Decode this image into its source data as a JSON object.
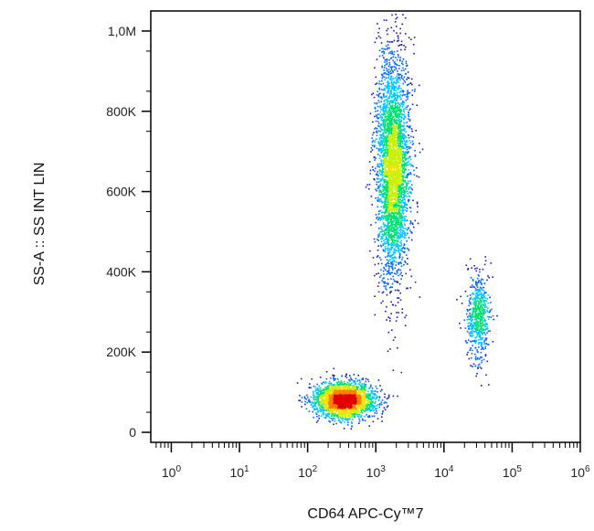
{
  "chart_data": {
    "type": "scatter",
    "subtype": "flow-cytometry density dot plot",
    "xlabel": "CD64 APC-Cy™7",
    "ylabel": "SS-A :: SS INT LIN",
    "x_scale": "log",
    "y_scale": "linear",
    "xlim": [
      0.5,
      1000000
    ],
    "ylim": [
      -25000,
      1050000
    ],
    "x_ticks": [
      {
        "value": 1,
        "label_base": "10",
        "label_exp": "0"
      },
      {
        "value": 10,
        "label_base": "10",
        "label_exp": "1"
      },
      {
        "value": 100,
        "label_base": "10",
        "label_exp": "2"
      },
      {
        "value": 1000,
        "label_base": "10",
        "label_exp": "3"
      },
      {
        "value": 10000,
        "label_base": "10",
        "label_exp": "4"
      },
      {
        "value": 100000,
        "label_base": "10",
        "label_exp": "5"
      },
      {
        "value": 1000000,
        "label_base": "10",
        "label_exp": "6"
      }
    ],
    "y_ticks": [
      {
        "value": 0,
        "label": "0"
      },
      {
        "value": 200000,
        "label": "200K"
      },
      {
        "value": 400000,
        "label": "400K"
      },
      {
        "value": 600000,
        "label": "600K"
      },
      {
        "value": 800000,
        "label": "800K"
      },
      {
        "value": 1000000,
        "label": "1,0M"
      }
    ],
    "grid": false,
    "legend": "none",
    "colormap": [
      "#1a1ab4",
      "#0066ff",
      "#00c8ff",
      "#00e070",
      "#c8f000",
      "#ffe000",
      "#ff8000",
      "#e00000"
    ],
    "populations": [
      {
        "center_x": 350,
        "center_y": 80000,
        "spread_log_x": 0.22,
        "spread_y": 22000,
        "count": 2600
      },
      {
        "center_x": 1800,
        "center_y": 660000,
        "spread_log_x": 0.12,
        "spread_y": 140000,
        "count": 3600
      },
      {
        "center_x": 32000,
        "center_y": 290000,
        "spread_log_x": 0.08,
        "spread_y": 55000,
        "count": 650
      }
    ]
  }
}
